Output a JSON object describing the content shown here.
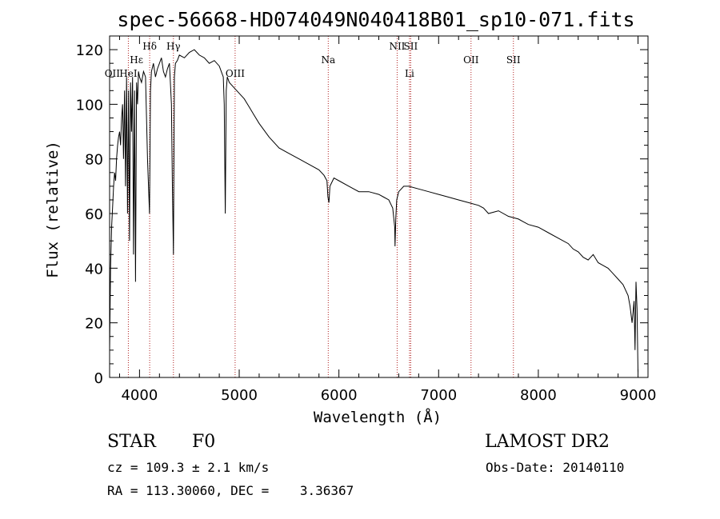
{
  "chart_data": {
    "type": "line",
    "title": "spec-56668-HD074049N040418B01_sp10-071.fits",
    "xlabel": "Wavelength (Å)",
    "ylabel": "Flux (relative)",
    "xlim": [
      3700,
      9100
    ],
    "ylim": [
      0,
      125
    ],
    "xticks": [
      4000,
      5000,
      6000,
      7000,
      8000,
      9000
    ],
    "yticks": [
      0,
      20,
      40,
      60,
      80,
      100,
      120
    ],
    "grid": false,
    "series": [
      {
        "x": [
          3700,
          3710,
          3720,
          3730,
          3740,
          3750,
          3760,
          3770,
          3780,
          3790,
          3800,
          3810,
          3820,
          3830,
          3840,
          3850,
          3860,
          3870,
          3880,
          3890,
          3900,
          3910,
          3920,
          3930,
          3940,
          3950,
          3960,
          3970,
          3980,
          3990,
          4000,
          4020,
          4040,
          4060,
          4080,
          4100,
          4110,
          4120,
          4140,
          4160,
          4180,
          4200,
          4220,
          4240,
          4260,
          4280,
          4300,
          4320,
          4330,
          4340,
          4350,
          4360,
          4380,
          4400,
          4450,
          4500,
          4550,
          4600,
          4650,
          4700,
          4750,
          4800,
          4820,
          4840,
          4850,
          4860,
          4870,
          4880,
          4900,
          4950,
          5000,
          5050,
          5100,
          5150,
          5200,
          5300,
          5400,
          5500,
          5600,
          5700,
          5800,
          5850,
          5880,
          5890,
          5900,
          5910,
          5950,
          6000,
          6100,
          6200,
          6300,
          6400,
          6450,
          6500,
          6540,
          6560,
          6563,
          6570,
          6580,
          6600,
          6650,
          6700,
          6800,
          6900,
          7000,
          7100,
          7200,
          7300,
          7400,
          7450,
          7500,
          7600,
          7700,
          7800,
          7850,
          7900,
          8000,
          8100,
          8200,
          8300,
          8350,
          8400,
          8450,
          8500,
          8550,
          8600,
          8650,
          8700,
          8750,
          8800,
          8850,
          8900,
          8920,
          8940,
          8960,
          8970,
          8980,
          8990,
          9000
        ],
        "y": [
          10,
          40,
          55,
          62,
          70,
          75,
          72,
          80,
          85,
          88,
          90,
          85,
          95,
          100,
          80,
          105,
          70,
          110,
          60,
          105,
          50,
          108,
          90,
          110,
          45,
          105,
          35,
          108,
          100,
          112,
          110,
          108,
          112,
          110,
          80,
          60,
          105,
          112,
          115,
          110,
          113,
          115,
          117,
          112,
          110,
          113,
          115,
          100,
          70,
          45,
          110,
          115,
          116,
          118,
          117,
          119,
          120,
          118,
          117,
          115,
          116,
          114,
          112,
          110,
          100,
          60,
          105,
          110,
          108,
          106,
          104,
          102,
          99,
          96,
          93,
          88,
          84,
          82,
          80,
          78,
          76,
          74,
          72,
          66,
          64,
          70,
          73,
          72,
          70,
          68,
          68,
          67,
          66,
          65,
          62,
          55,
          48,
          58,
          65,
          68,
          70,
          70,
          69,
          68,
          67,
          66,
          65,
          64,
          63,
          62,
          60,
          61,
          59,
          58,
          57,
          56,
          55,
          53,
          51,
          49,
          47,
          46,
          44,
          43,
          45,
          42,
          41,
          40,
          38,
          36,
          34,
          30,
          26,
          20,
          28,
          10,
          35,
          25,
          2
        ]
      }
    ],
    "lines": [
      {
        "label": "Hδ",
        "x": 4102,
        "label_y": 120
      },
      {
        "label": "Hγ",
        "x": 4340,
        "label_y": 120
      },
      {
        "label": "Hε",
        "x": 3970,
        "label_y": 115
      },
      {
        "label": "OII",
        "x": 3727,
        "label_y": 110
      },
      {
        "label": "HeI",
        "x": 3888,
        "label_y": 110
      },
      {
        "label": "Na",
        "x": 5893,
        "label_y": 115
      },
      {
        "label": "NII",
        "x": 6584,
        "label_y": 120
      },
      {
        "label": "SII",
        "x": 6720,
        "label_y": 120
      },
      {
        "label": "Li",
        "x": 6708,
        "label_y": 110
      },
      {
        "label": "OII",
        "x": 7325,
        "label_y": 115
      },
      {
        "label": "SII",
        "x": 7750,
        "label_y": 115
      },
      {
        "label": "OIII",
        "x": 4959,
        "label_y": 110
      }
    ],
    "vlines_x": [
      3888,
      4102,
      4340,
      4959,
      5893,
      6584,
      6708,
      6720,
      7325,
      7750
    ]
  },
  "info": {
    "object_class": "STAR",
    "subclass": "F0",
    "survey": "LAMOST DR2",
    "cz": "cz = 109.3 ± 2.1 km/s",
    "obs_date": "Obs-Date: 20140110",
    "radec": "RA = 113.30060, DEC =    3.36367"
  },
  "colors": {
    "spectrum": "#000000",
    "emission_lines": "#b02020"
  }
}
